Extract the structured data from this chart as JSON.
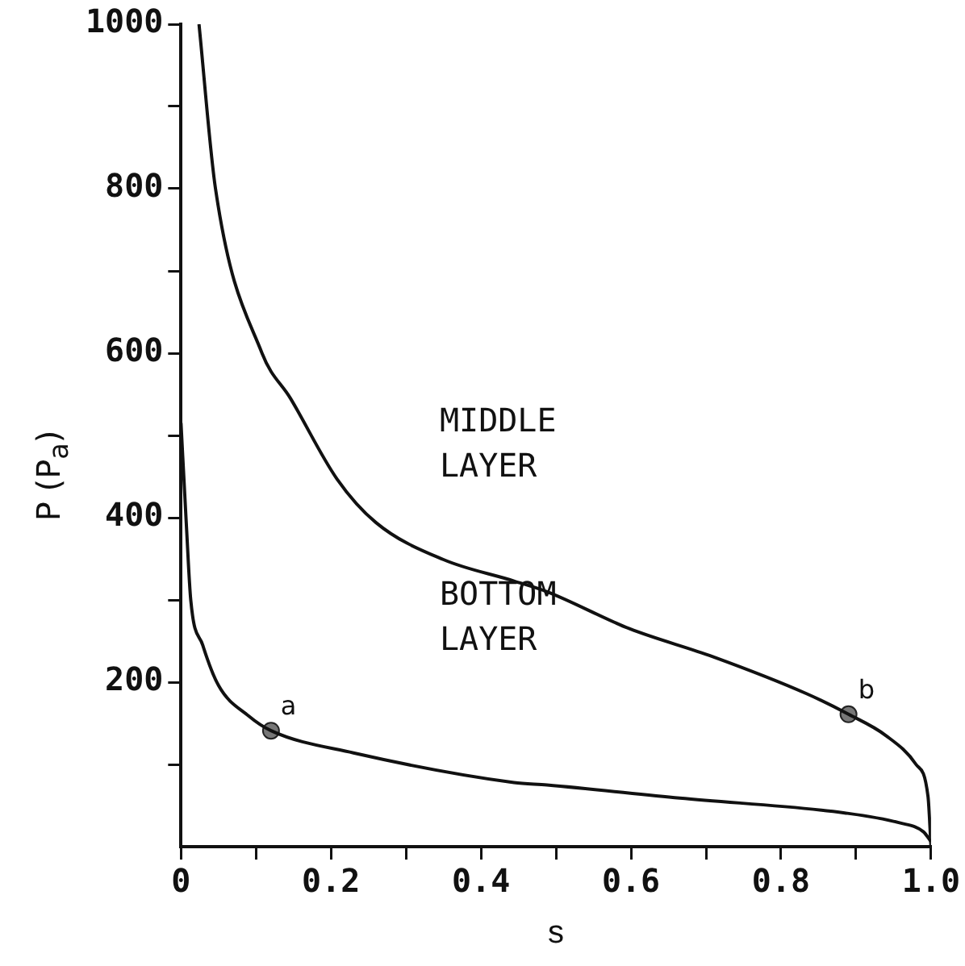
{
  "chart_data": {
    "type": "line",
    "xlabel": "s",
    "ylabel": "P (P$_{a}$)",
    "xlim": [
      0,
      1
    ],
    "ylim": [
      0,
      1000
    ],
    "xticks": [
      0,
      {
        "value": 0.1,
        "label": null
      },
      0.2,
      {
        "value": 0.3,
        "label": null
      },
      0.4,
      {
        "value": 0.5,
        "label": null
      },
      0.6,
      {
        "value": 0.7,
        "label": null
      },
      0.8,
      {
        "value": 0.9,
        "label": null
      },
      {
        "value": 1,
        "label": "1.0"
      }
    ],
    "yticks": [
      {
        "value": 100,
        "label": null
      },
      200,
      {
        "value": 300,
        "label": null
      },
      400,
      {
        "value": 500,
        "label": null
      },
      600,
      {
        "value": 700,
        "label": null
      },
      800,
      {
        "value": 900,
        "label": null
      },
      1000
    ],
    "grid": false,
    "legend": false,
    "line_style": "solid",
    "marker": "none",
    "series": [
      {
        "color": "#111111",
        "x": [
          0.024,
          0.046,
          0.108,
          0.146,
          0.208,
          0.26,
          0.35,
          0.444,
          0.488,
          0.598,
          0.709,
          0.834,
          0.89,
          0.94,
          0.98,
          0.996,
          1.0
        ],
        "values": [
          1000,
          800,
          600,
          545,
          447,
          394,
          349,
          323,
          310,
          265,
          231,
          186,
          161,
          135,
          100,
          61,
          0
        ]
      },
      {
        "color": "#111111",
        "x": [
          0.0,
          0.007,
          0.013,
          0.029,
          0.05,
          0.09,
          0.12,
          0.23,
          0.444,
          0.488,
          0.665,
          0.885,
          0.958,
          0.99,
          1.0
        ],
        "values": [
          515,
          394,
          300,
          245,
          196,
          159,
          141,
          114,
          78,
          75,
          59,
          41,
          29,
          18,
          6
        ]
      },
      {
        "type": "scatter",
        "marker": "circle",
        "color": "#777777",
        "x": [
          0.12,
          0.89
        ],
        "values": [
          141,
          161
        ]
      }
    ],
    "annotations": [
      {
        "text": "a",
        "x": 0.12,
        "y": 141
      },
      {
        "text": "b",
        "x": 0.89,
        "y": 161
      },
      "MIDDLE\nLAYER",
      "BOTTOM\nLAYER"
    ]
  }
}
